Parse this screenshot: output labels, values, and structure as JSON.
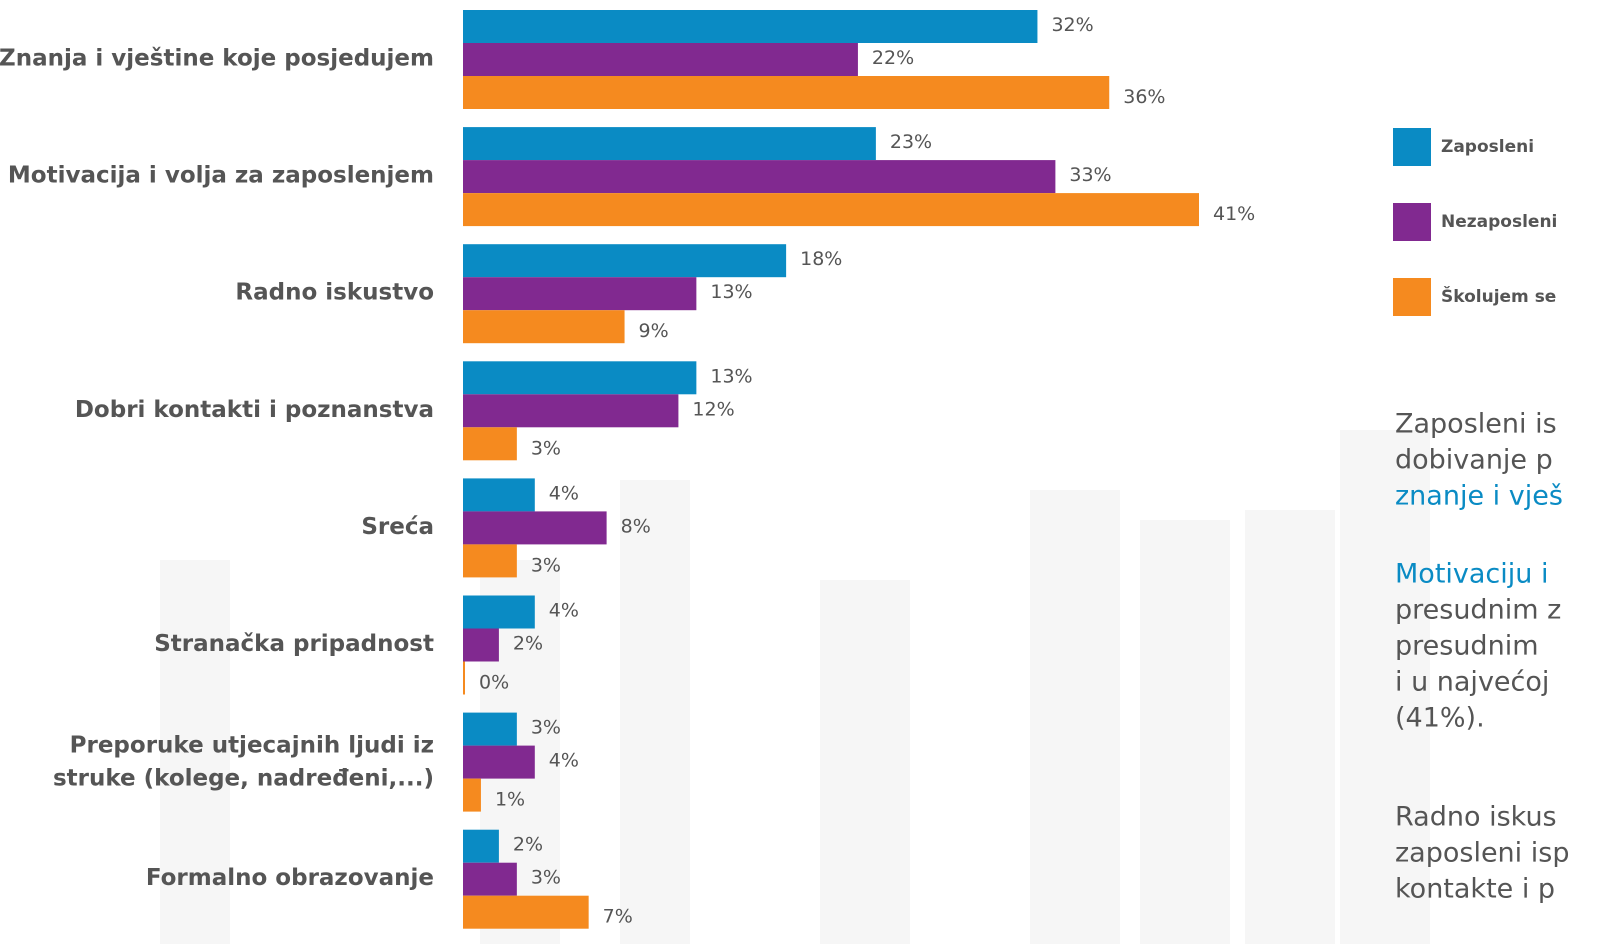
{
  "chart_data": {
    "type": "bar",
    "orientation": "horizontal",
    "categories": [
      "Znanja i vještine koje posjedujem",
      "Motivacija i volja za zaposlenjem",
      "Radno iskustvo",
      "Dobri kontakti i poznanstva",
      "Sreća",
      "Stranačka pripadnost",
      "Preporuke utjecajnih ljudi iz struke (kolege, nadređeni,...)",
      "Formalno obrazovanje"
    ],
    "series": [
      {
        "name": "Zaposleni",
        "color": "#0a8bc4",
        "values": [
          32,
          23,
          18,
          13,
          4,
          4,
          3,
          2
        ],
        "value_labels": [
          "32%",
          "23%",
          "18%",
          "13%",
          "4%",
          "4%",
          "3%",
          "2%"
        ]
      },
      {
        "name": "Nezaposleni",
        "color": "#812990",
        "values": [
          22,
          33,
          13,
          12,
          8,
          2,
          4,
          3
        ],
        "value_labels": [
          "22%",
          "33%",
          "13%",
          "12%",
          "8%",
          "2%",
          "4%",
          "3%"
        ]
      },
      {
        "name": "Školujem se",
        "color": "#f58a1f",
        "values": [
          36,
          41,
          9,
          3,
          3,
          0,
          1,
          7
        ],
        "value_labels": [
          "36%",
          "41%",
          "9%",
          "3%",
          "3%",
          "0%",
          "1%",
          "7%"
        ]
      }
    ],
    "xlim": [
      0,
      41
    ]
  },
  "notes": [
    [
      {
        "text": "Zaposleni is"
      },
      {
        "text": "dobivanje p"
      },
      {
        "text": "znanje i vješ",
        "highlight": true
      }
    ],
    [
      {
        "text": "Motivaciju i",
        "highlight": true
      },
      {
        "text": "presudnim z"
      },
      {
        "text": "presudnim"
      },
      {
        "text": "i u najvećoj"
      },
      {
        "text": "(41%)."
      }
    ],
    [
      {
        "text": "Radno iskus"
      },
      {
        "text": "zaposleni isp"
      },
      {
        "text": "kontakte i p"
      }
    ]
  ]
}
